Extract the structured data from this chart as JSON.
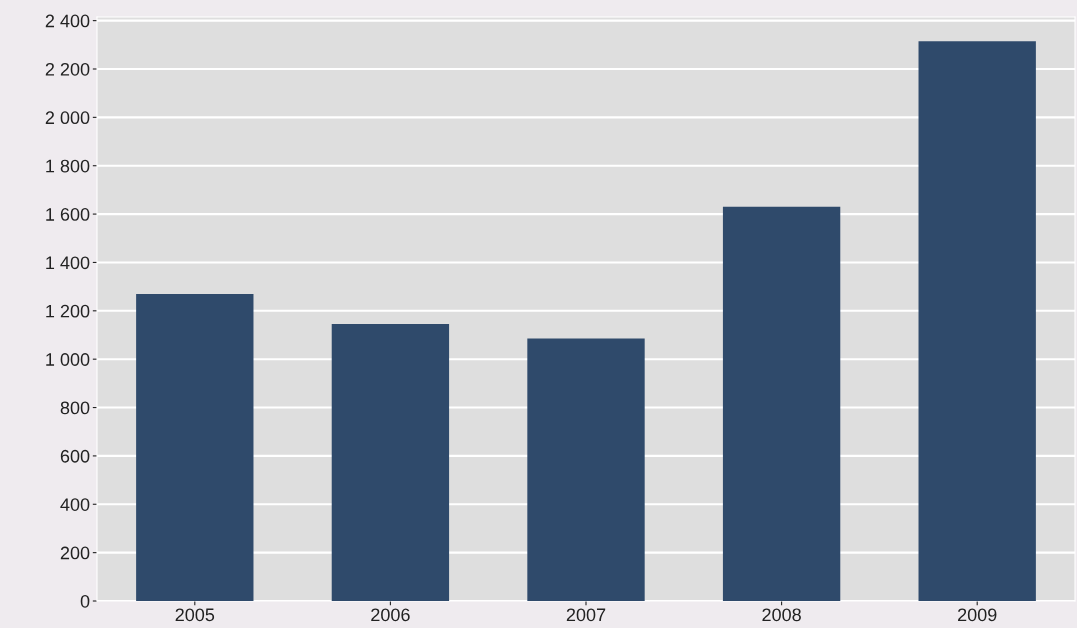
{
  "chart_data": {
    "type": "bar",
    "categories": [
      "2005",
      "2006",
      "2007",
      "2008",
      "2009"
    ],
    "values": [
      1270,
      1145,
      1085,
      1630,
      2315
    ],
    "color": "#2f4a6b",
    "ylim": [
      0,
      2415
    ],
    "yticks": [
      0,
      200,
      400,
      600,
      800,
      {
        "value": 1000,
        "label": "1 000"
      },
      {
        "value": 1200,
        "label": "1 200"
      },
      {
        "value": 1400,
        "label": "1 400"
      },
      {
        "value": 1600,
        "label": "1 600"
      },
      {
        "value": 1800,
        "label": "1 800"
      },
      {
        "value": 2000,
        "label": "2 000"
      },
      {
        "value": 2200,
        "label": "2 200"
      },
      {
        "value": 2400,
        "label": "2 400"
      }
    ],
    "grid": "y",
    "legend": false
  }
}
